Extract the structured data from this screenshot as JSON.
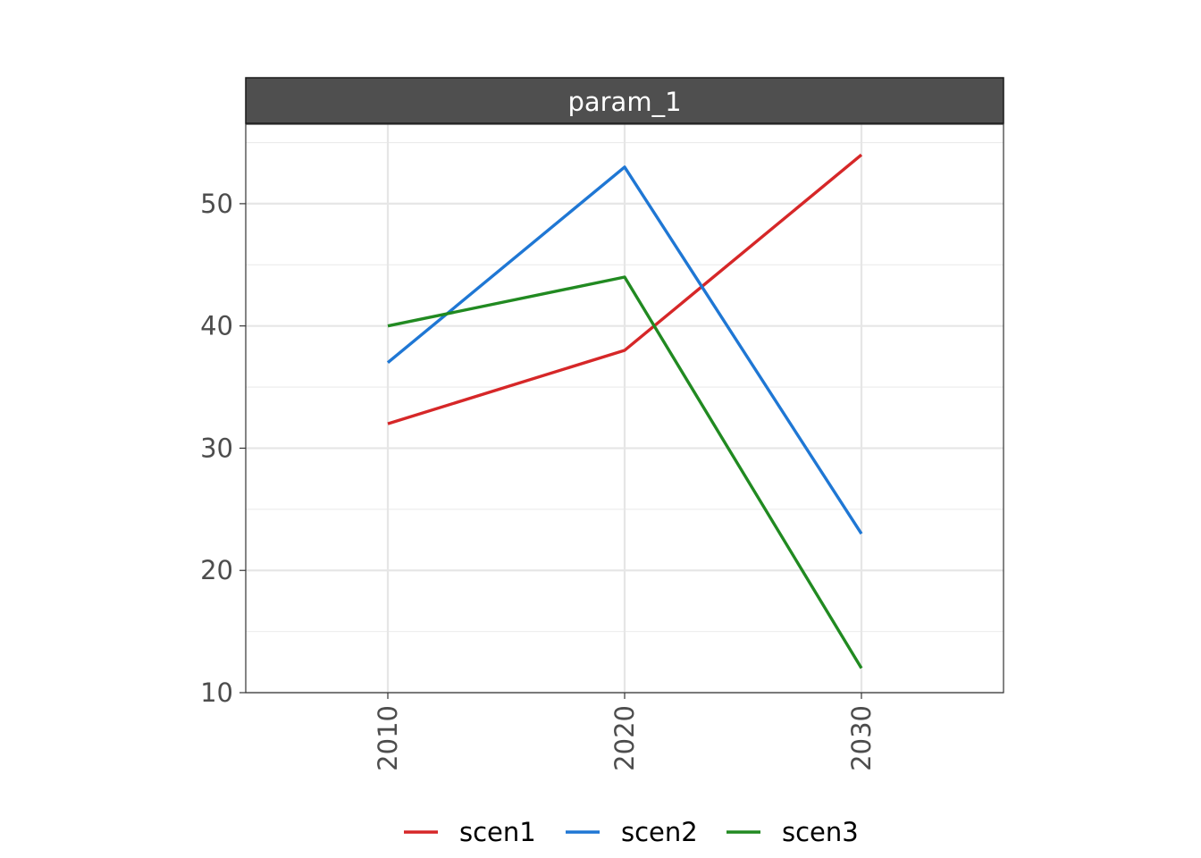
{
  "chart_data": {
    "type": "line",
    "facet_label": "param_1",
    "x": [
      2010,
      2020,
      2030
    ],
    "x_tick_labels": [
      "2010",
      "2020",
      "2030"
    ],
    "xlim": [
      2004,
      2036
    ],
    "y_ticks": [
      10,
      20,
      30,
      40,
      50
    ],
    "y_tick_labels": [
      "10",
      "20",
      "30",
      "40",
      "50"
    ],
    "ylim": [
      10,
      56.5
    ],
    "grid": true,
    "legend_position": "bottom",
    "series": [
      {
        "name": "scen1",
        "color": "#d62728",
        "values": [
          32,
          38,
          54
        ]
      },
      {
        "name": "scen2",
        "color": "#1f77d4",
        "values": [
          37,
          53,
          23
        ]
      },
      {
        "name": "scen3",
        "color": "#218a21",
        "values": [
          40,
          44,
          12
        ]
      }
    ]
  }
}
